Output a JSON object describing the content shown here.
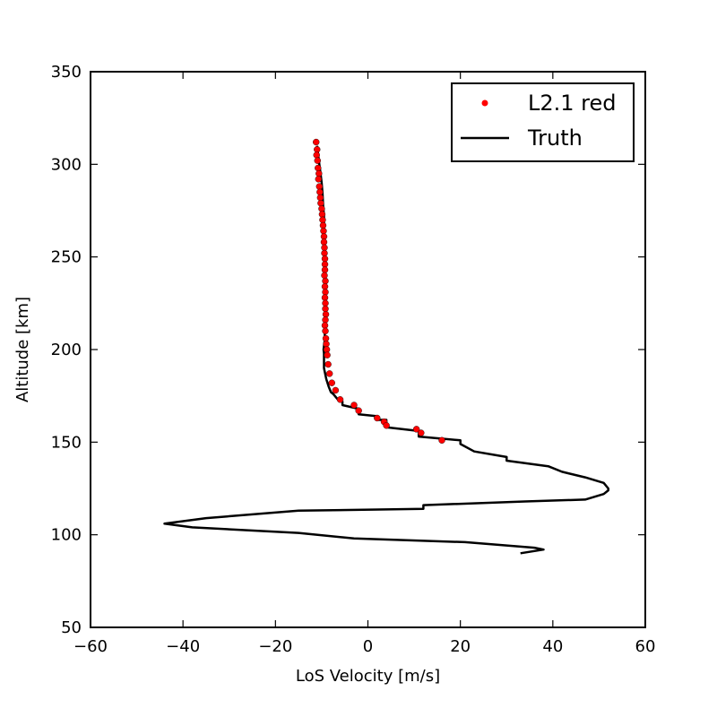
{
  "chart_data": {
    "type": "scatter",
    "title": "",
    "xlabel": "LoS Velocity [m/s]",
    "ylabel": "Altitude [km]",
    "xlim": [
      -60,
      60
    ],
    "ylim": [
      50,
      350
    ],
    "xticks": [
      -60,
      -40,
      -20,
      0,
      20,
      40,
      60
    ],
    "yticks": [
      50,
      100,
      150,
      200,
      250,
      300,
      350
    ],
    "grid": false,
    "legend": "top-right",
    "colors": {
      "points": "#ff0000",
      "line": "#000000"
    },
    "series": [
      {
        "name": "L2.1 red",
        "kind": "points",
        "x": [
          -11.2,
          -11.0,
          -11.1,
          -10.9,
          -10.8,
          -10.6,
          -10.7,
          -10.5,
          -10.4,
          -10.3,
          -10.2,
          -10.0,
          -9.9,
          -9.8,
          -9.7,
          -9.6,
          -9.5,
          -9.5,
          -9.4,
          -9.4,
          -9.3,
          -9.3,
          -9.3,
          -9.4,
          -9.2,
          -9.3,
          -9.2,
          -9.3,
          -9.2,
          -9.2,
          -9.1,
          -9.2,
          -9.3,
          -9.2,
          -9.1,
          -9.0,
          -8.9,
          -8.8,
          -8.6,
          -8.3,
          -7.8,
          -7.0,
          -6.0,
          -3.0,
          -2.0,
          2.0,
          3.5,
          4.0,
          10.5,
          11.5,
          16.0
        ],
        "y": [
          312,
          308,
          305,
          302,
          298,
          295,
          292,
          288,
          285,
          282,
          279,
          276,
          273,
          270,
          267,
          264,
          261,
          258,
          255,
          252,
          249,
          246,
          243,
          240,
          237,
          234,
          231,
          228,
          225,
          222,
          219,
          216,
          213,
          210,
          206,
          203,
          200,
          197,
          192,
          187,
          182,
          178,
          173,
          170,
          167,
          163,
          161,
          159,
          157,
          155,
          151
        ]
      },
      {
        "name": "Truth",
        "kind": "line",
        "x": [
          -11,
          -10.5,
          -10.3,
          -10,
          -9.8,
          -9.7,
          -9.5,
          -9.5,
          -9.4,
          -9.3,
          -9.2,
          -9.2,
          -9.1,
          -9.2,
          -9.3,
          -9.2,
          -9.4,
          -9.3,
          -9.6,
          -9.5,
          -9.5,
          -9.0,
          -8.5,
          -8,
          -7.5,
          -6.5,
          -5.5,
          -5.5,
          -2,
          -2,
          2,
          2,
          4,
          4,
          11,
          11,
          20,
          20,
          23,
          30,
          30,
          39,
          42,
          47,
          51,
          52,
          52,
          51,
          47,
          34,
          12,
          12,
          -15,
          -35,
          -44,
          -38,
          -15,
          -3,
          21,
          36,
          38,
          33
        ],
        "y": [
          310,
          300,
          296,
          290,
          284,
          278,
          272,
          266,
          260,
          254,
          248,
          242,
          236,
          230,
          226,
          220,
          214,
          206,
          200,
          198,
          190,
          184,
          180,
          177,
          176,
          173,
          172,
          170,
          168,
          165,
          164,
          162,
          162,
          158,
          156,
          153,
          151,
          149,
          145,
          142,
          140,
          137,
          134,
          131,
          128,
          125,
          124,
          122,
          119,
          118,
          116,
          114,
          113,
          109,
          106,
          104,
          101,
          98,
          96,
          93,
          92,
          90
        ]
      }
    ]
  }
}
